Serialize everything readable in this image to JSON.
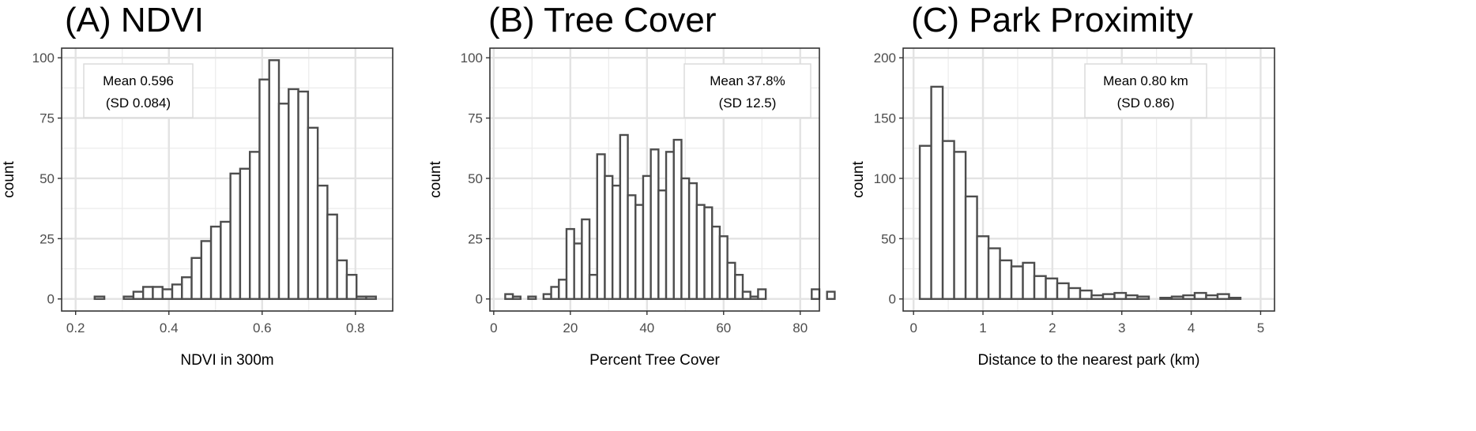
{
  "chart_data": [
    {
      "type": "bar",
      "title": "(A) NDVI",
      "xlabel": "NDVI in 300m",
      "ylabel": "count",
      "xlim": [
        0.17,
        0.88
      ],
      "ylim": [
        -5,
        104
      ],
      "xticks": [
        0.2,
        0.4,
        0.6,
        0.8
      ],
      "xtick_labels": [
        "0.2",
        "0.4",
        "0.6",
        "0.8"
      ],
      "yticks": [
        0,
        25,
        50,
        75,
        100
      ],
      "yticks_minor": [
        12.5,
        37.5,
        62.5,
        87.5
      ],
      "xticks_minor": [
        0.3,
        0.5,
        0.7
      ],
      "binwidth": 0.0208,
      "bin_start": 0.22,
      "values": [
        0,
        1,
        0,
        0,
        1,
        3,
        5,
        5,
        4,
        6,
        9,
        17,
        24,
        30,
        32,
        52,
        54,
        61,
        91,
        99,
        81,
        87,
        86,
        71,
        47,
        35,
        16,
        10,
        1,
        1,
        0
      ],
      "annotation": [
        "Mean 0.596",
        "(SD 0.084)"
      ],
      "grid": true
    },
    {
      "type": "bar",
      "title": "(B) Tree Cover",
      "xlabel": "Percent Tree Cover",
      "ylabel": "count",
      "xlim": [
        -1,
        85
      ],
      "ylim": [
        -5,
        104
      ],
      "xticks": [
        0,
        20,
        40,
        60,
        80
      ],
      "xtick_labels": [
        "0",
        "20",
        "40",
        "60",
        "80"
      ],
      "yticks": [
        0,
        25,
        50,
        75,
        100
      ],
      "yticks_minor": [
        12.5,
        37.5,
        62.5,
        87.5
      ],
      "xticks_minor": [
        10,
        30,
        50,
        70
      ],
      "binwidth": 2.0,
      "bin_start": 3.0,
      "values": [
        2,
        1,
        0,
        1,
        0,
        2,
        5,
        8,
        29,
        23,
        33,
        10,
        60,
        51,
        47,
        68,
        43,
        39,
        51,
        62,
        45,
        61,
        66,
        50,
        48,
        39,
        38,
        30,
        26,
        15,
        10,
        3,
        1,
        4,
        0,
        0,
        0,
        0,
        0,
        0,
        4,
        0,
        3
      ],
      "annotation": [
        "Mean 37.8%",
        "(SD 12.5)"
      ],
      "grid": true
    },
    {
      "type": "bar",
      "title": "(C) Park Proximity",
      "xlabel": "Distance to the nearest park (km)",
      "ylabel": "count",
      "xlim": [
        -0.15,
        5.2
      ],
      "ylim": [
        -10,
        208
      ],
      "xticks": [
        0,
        1,
        2,
        3,
        4,
        5
      ],
      "xtick_labels": [
        "0",
        "1",
        "2",
        "3",
        "4",
        "5"
      ],
      "yticks": [
        0,
        50,
        100,
        150,
        200
      ],
      "yticks_minor": [
        25,
        75,
        125,
        175
      ],
      "xticks_minor": [
        0.5,
        1.5,
        2.5,
        3.5,
        4.5
      ],
      "binwidth": 0.165,
      "bin_start": 0.09,
      "values": [
        127,
        176,
        131,
        122,
        85,
        52,
        42,
        32,
        27,
        30,
        19,
        17,
        13,
        9,
        7,
        3,
        4,
        5,
        3,
        2,
        0,
        1,
        2,
        3,
        5,
        3,
        4,
        1,
        0,
        0
      ],
      "annotation": [
        "Mean 0.80 km",
        "(SD 0.86)"
      ],
      "grid": true
    }
  ]
}
